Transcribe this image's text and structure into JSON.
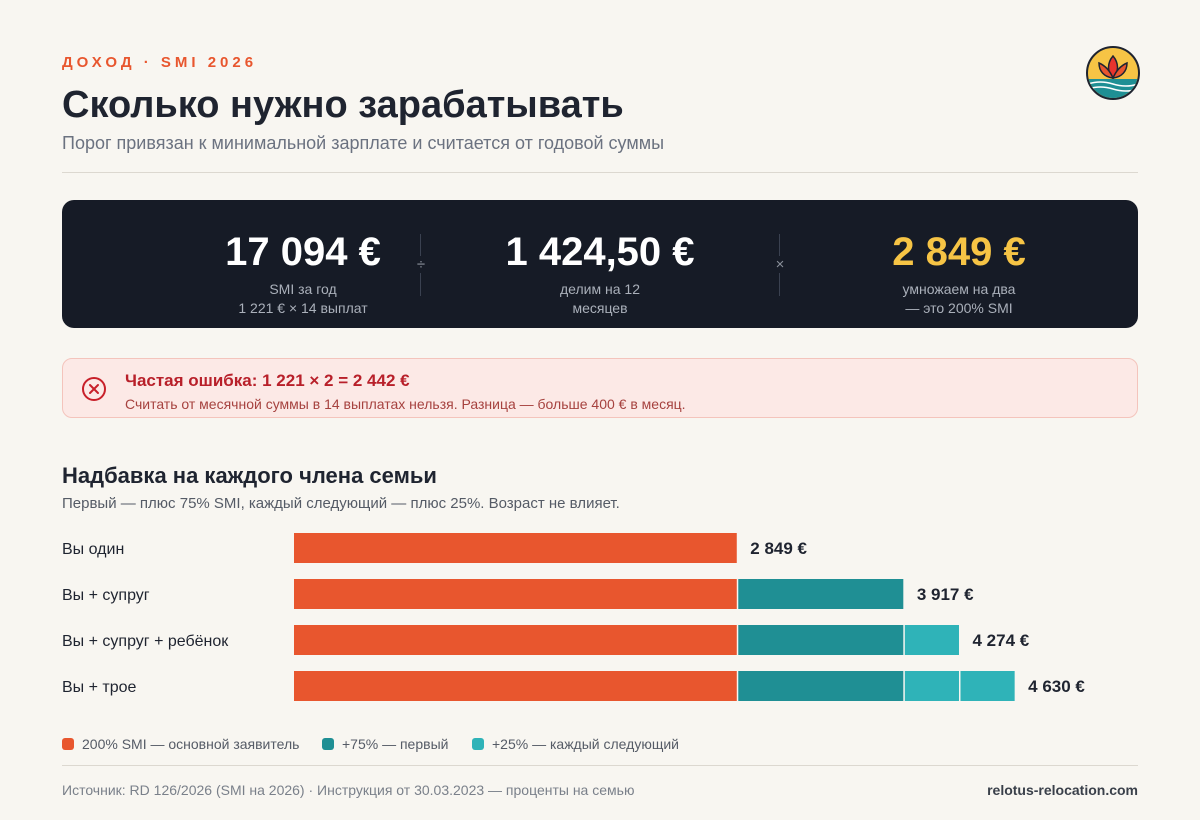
{
  "header": {
    "eyebrow": "ДОХОД · SMI 2026",
    "title": "Сколько нужно зарабатывать",
    "subtitle": "Порог привязан к минимальной зарплате и считается от годовой суммы"
  },
  "logo": {
    "icon": "lotus-logo-icon"
  },
  "summary": {
    "stats": [
      {
        "value": "17 094 €",
        "caption1": "SMI за год",
        "caption2": "1 221 € × 14 выплат"
      },
      {
        "value": "1 424,50 €",
        "caption1": "делим на 12",
        "caption2": "месяцев"
      },
      {
        "value": "2 849 €",
        "caption1": "умножаем на два",
        "caption2": "— это 200% SMI"
      }
    ],
    "operators": [
      "÷",
      "×"
    ],
    "accent_color": "#f6c445"
  },
  "error_note": {
    "icon": "error-x-icon",
    "title": "Частая ошибка: 1 221 × 2 = 2 442 €",
    "text": "Считать от месячной суммы в 14 выплатах нельзя. Разница — больше 400 € в месяц."
  },
  "section": {
    "title": "Надбавка на каждого члена семьи",
    "subtitle": "Первый — плюс 75% SMI, каждый следующий — плюс 25%. Возраст не влияет."
  },
  "chart_data": {
    "type": "bar",
    "orientation": "horizontal",
    "stacked": true,
    "categories": [
      "Вы один",
      "Вы + супруг",
      "Вы + супруг + ребёнок",
      "Вы + трое"
    ],
    "series": [
      {
        "name": "200% SMI — основной заявитель",
        "color": "#e8562e",
        "values": [
          [
            2849
          ],
          [
            2849
          ],
          [
            2849
          ],
          [
            2849
          ]
        ]
      },
      {
        "name": "+75% — первый",
        "color": "#1f8f94",
        "values": [
          [],
          [
            1068
          ],
          [
            1068
          ],
          [
            1068
          ]
        ]
      },
      {
        "name": "+25% — каждый следующий",
        "color": "#2fb3b8",
        "values": [
          [],
          [],
          [
            357
          ],
          [
            357,
            357
          ]
        ]
      }
    ],
    "totals": [
      "2 849 €",
      "3 917 €",
      "4 274 €",
      "4 630 €"
    ],
    "xlim": [
      0,
      4630
    ],
    "grid": false,
    "legend_position": "bottom-left"
  },
  "footer": {
    "source": "Источник: RD 126/2026 (SMI на 2026) · Инструкция от 30.03.2023 — проценты на семью",
    "site": "relotus-relocation.com"
  }
}
